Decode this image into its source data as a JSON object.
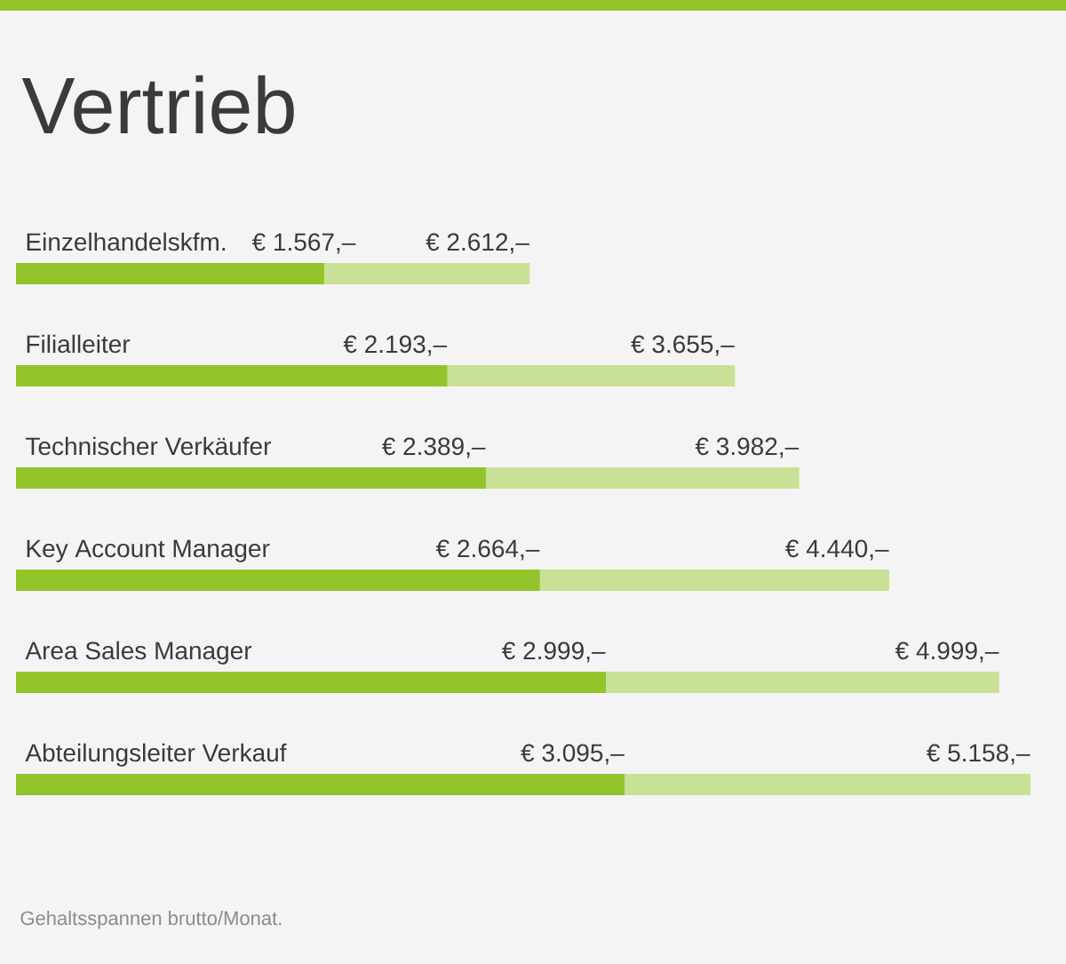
{
  "chart_data": {
    "type": "bar",
    "orientation": "horizontal",
    "stacked": true,
    "title": "Vertrieb",
    "categories": [
      "Einzelhandelskfm.",
      "Filialleiter",
      "Technischer Verkäufer",
      "Key Account Manager",
      "Area Sales Manager",
      "Abteilungsleiter Verkauf"
    ],
    "series": [
      {
        "color": "#93c42a",
        "values": [
          1567,
          2193,
          2389,
          2664,
          2999,
          3095
        ],
        "value_labels": [
          "€ 1.567,–",
          "€ 2.193,–",
          "€ 2.389,–",
          "€ 2.664,–",
          "€ 2.999,–",
          "€ 3.095,–"
        ]
      },
      {
        "color": "#c9e196",
        "values": [
          1045,
          1462,
          1593,
          1776,
          2000,
          2063
        ]
      }
    ],
    "totals": [
      "€ 2.612,–",
      "€ 3.655,–",
      "€ 3.982,–",
      "€ 4.440,–",
      "€ 4.999,–",
      "€ 5.158,–"
    ],
    "xlim": [
      0,
      5158
    ],
    "annotations": [
      "Gehaltsspannen brutto/Monat."
    ]
  }
}
